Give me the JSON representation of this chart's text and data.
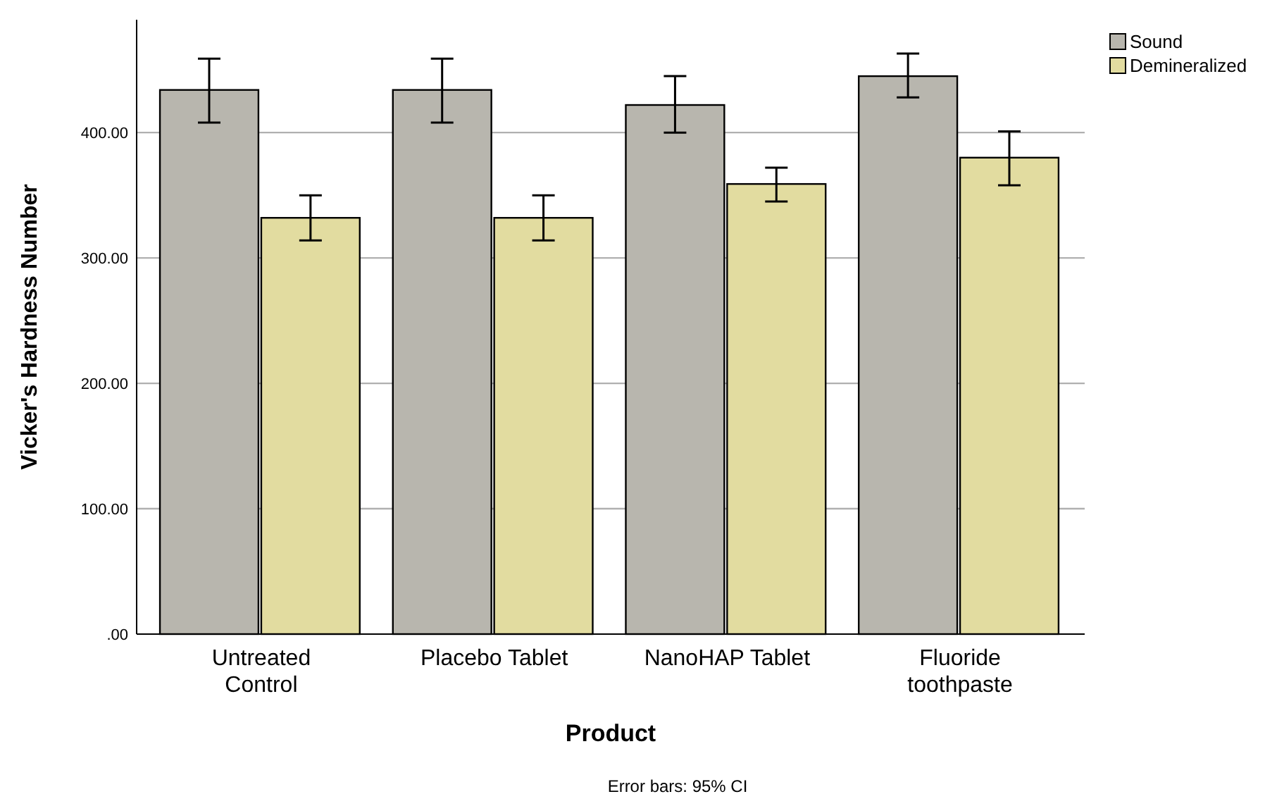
{
  "chart_data": {
    "type": "bar",
    "xlabel": "Product",
    "ylabel": "Vicker's Hardness Number",
    "categories": [
      "Untreated\nControl",
      "Placebo Tablet",
      "NanoHAP Tablet",
      "Fluoride\ntoothpaste"
    ],
    "series": [
      {
        "name": "Sound",
        "color": "#b8b6ae",
        "values": [
          434,
          434,
          422,
          445
        ],
        "errors": [
          [
            408,
            459
          ],
          [
            408,
            459
          ],
          [
            400,
            445
          ],
          [
            428,
            463
          ]
        ]
      },
      {
        "name": "Demineralized",
        "color": "#e2dca0",
        "values": [
          332,
          332,
          359,
          380
        ],
        "errors": [
          [
            314,
            350
          ],
          [
            314,
            350
          ],
          [
            345,
            372
          ],
          [
            358,
            401
          ]
        ]
      }
    ],
    "ylim": [
      0,
      490
    ],
    "yticks": [
      {
        "value": 0,
        "label": ".00"
      },
      {
        "value": 100,
        "label": "100.00"
      },
      {
        "value": 200,
        "label": "200.00"
      },
      {
        "value": 300,
        "label": "300.00"
      },
      {
        "value": 400,
        "label": "400.00"
      }
    ],
    "grid": "y",
    "legend": "top right",
    "annotations": [
      "Error bars: 95% CI"
    ]
  }
}
